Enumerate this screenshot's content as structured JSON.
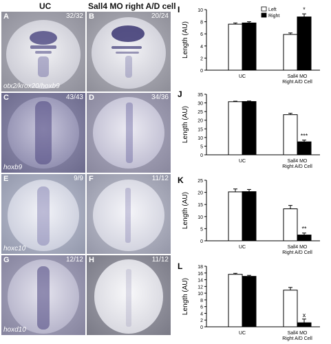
{
  "headers": {
    "col1": "UC",
    "col2": "Sall4 MO right A/D cell"
  },
  "panels": {
    "A": {
      "label": "A",
      "count": "32/32",
      "gene": "otx2/krox20/hoxb9"
    },
    "B": {
      "label": "B",
      "count": "20/24",
      "gene": ""
    },
    "C": {
      "label": "C",
      "count": "43/43",
      "gene": "hoxb9"
    },
    "D": {
      "label": "D",
      "count": "34/36",
      "gene": ""
    },
    "E": {
      "label": "E",
      "count": "9/9",
      "gene": "hoxc10"
    },
    "F": {
      "label": "F",
      "count": "11/12",
      "gene": ""
    },
    "G": {
      "label": "G",
      "count": "12/12",
      "gene": "hoxd10"
    },
    "H": {
      "label": "H",
      "count": "11/12",
      "gene": ""
    }
  },
  "chart_data": [
    {
      "type": "bar",
      "panel": "I",
      "ylabel": "Length (AU)",
      "ylim": [
        0,
        10
      ],
      "ticks": [
        0,
        2,
        4,
        6,
        8,
        10
      ],
      "categories": [
        "UC",
        "Sall4 MO Right A/D Cell"
      ],
      "series": [
        {
          "name": "Left",
          "values": [
            7.6,
            5.9
          ],
          "err": [
            0.2,
            0.25
          ]
        },
        {
          "name": "Right",
          "values": [
            7.8,
            8.8
          ],
          "err": [
            0.2,
            0.5
          ]
        }
      ],
      "annotations": [
        {
          "text": "*",
          "category": 1,
          "series": 1
        }
      ],
      "legend": "top-center"
    },
    {
      "type": "bar",
      "panel": "J",
      "ylabel": "Length (AU)",
      "ylim": [
        0,
        35
      ],
      "ticks": [
        0,
        5,
        10,
        15,
        20,
        25,
        30,
        35
      ],
      "categories": [
        "UC",
        "Sall4 MO Right A/D Cell"
      ],
      "series": [
        {
          "name": "Left",
          "values": [
            30.7,
            23.2
          ],
          "err": [
            0.3,
            0.8
          ]
        },
        {
          "name": "Right",
          "values": [
            30.8,
            7.5
          ],
          "err": [
            0.3,
            1.0
          ]
        }
      ],
      "annotations": [
        {
          "text": "***",
          "category": 1,
          "series": 1
        }
      ]
    },
    {
      "type": "bar",
      "panel": "K",
      "ylabel": "Length (AU)",
      "ylim": [
        0,
        25
      ],
      "ticks": [
        0,
        5,
        10,
        15,
        20,
        25
      ],
      "categories": [
        "UC",
        "Sall4 MO Right A/D Cell"
      ],
      "series": [
        {
          "name": "Left",
          "values": [
            20.2,
            13.2
          ],
          "err": [
            1.2,
            1.4
          ]
        },
        {
          "name": "Right",
          "values": [
            20.3,
            2.4
          ],
          "err": [
            0.9,
            0.8
          ]
        }
      ],
      "annotations": [
        {
          "text": "**",
          "category": 1,
          "series": 1
        }
      ]
    },
    {
      "type": "bar",
      "panel": "L",
      "ylabel": "Length (AU)",
      "ylim": [
        0,
        18
      ],
      "ticks": [
        0,
        2,
        4,
        6,
        8,
        10,
        12,
        14,
        16,
        18
      ],
      "categories": [
        "UC",
        "Sall4 MO Right A/D Cell"
      ],
      "series": [
        {
          "name": "Left",
          "values": [
            15.6,
            10.9
          ],
          "err": [
            0.3,
            0.8
          ]
        },
        {
          "name": "Right",
          "values": [
            15.0,
            1.2
          ],
          "err": [
            0.3,
            1.1
          ]
        }
      ],
      "annotations": [
        {
          "text": "x",
          "category": 1,
          "series": 1
        }
      ]
    }
  ]
}
